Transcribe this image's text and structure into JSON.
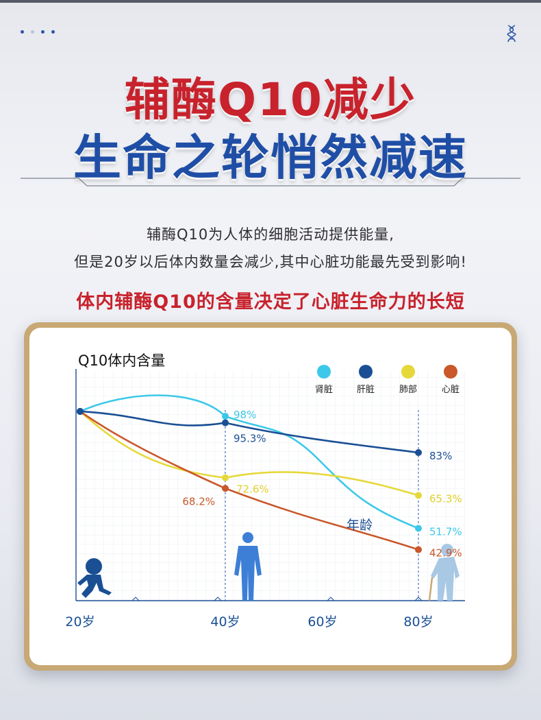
{
  "header": {
    "title_line1": "辅酶Q10减少",
    "title_line2": "生命之轮悄然减速"
  },
  "intro": {
    "line1": "辅酶Q10为人体的细胞活动提供能量,",
    "line2": "但是20岁以后体内数量会减少,其中心脏功能最先受到影响!"
  },
  "subheading": "体内辅酶Q10的含量决定了心脏生命力的长短",
  "colors": {
    "title_red": "#c8222c",
    "title_blue": "#1f4ea6",
    "kidney": "#3cc8e8",
    "liver": "#1a4f94",
    "lung": "#e6d83a",
    "heart": "#c9582a"
  },
  "icons": [
    "dots-icon",
    "dna-icon",
    "child-running-icon",
    "adult-standing-icon",
    "elderly-cane-icon"
  ],
  "chart_data": {
    "type": "line",
    "ylabel": "Q10体内含量",
    "xlabel": "年龄",
    "x": [
      20,
      40,
      80
    ],
    "tick_labels": [
      "20岁",
      "40岁",
      "60岁",
      "80岁"
    ],
    "tick_values": [
      20,
      40,
      60,
      80
    ],
    "ylim": [
      30,
      110
    ],
    "grid": true,
    "legend_position": "top-right",
    "series": [
      {
        "name": "肾脏",
        "color": "#3cc8e8",
        "values": [
          100,
          98,
          51.7
        ],
        "labels": [
          "",
          "98%",
          "51.7%"
        ]
      },
      {
        "name": "肝脏",
        "color": "#1a4f94",
        "values": [
          100,
          95.3,
          83
        ],
        "labels": [
          "",
          "95.3%",
          "83%"
        ]
      },
      {
        "name": "肺部",
        "color": "#e6d83a",
        "values": [
          100,
          72.6,
          65.3
        ],
        "labels": [
          "",
          "72.6%",
          "65.3%"
        ]
      },
      {
        "name": "心脏",
        "color": "#c9582a",
        "values": [
          100,
          68.2,
          42.9
        ],
        "labels": [
          "",
          "68.2%",
          "42.9%"
        ]
      }
    ]
  }
}
